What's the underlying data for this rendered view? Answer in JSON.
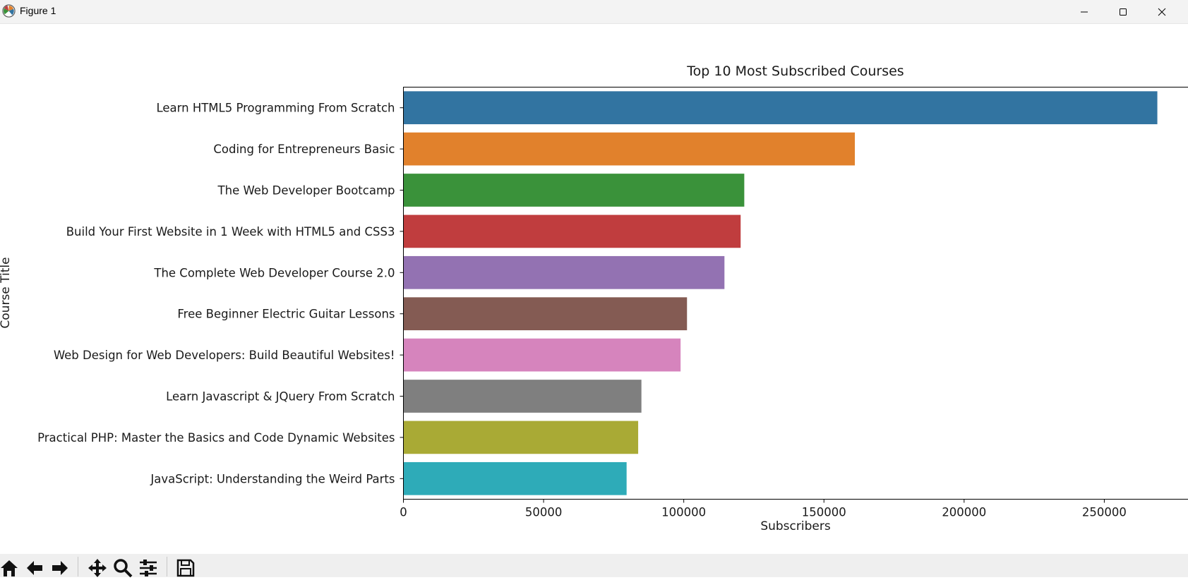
{
  "window": {
    "title": "Figure 1",
    "controls": [
      "minimize",
      "maximize",
      "close"
    ]
  },
  "toolbar": {
    "buttons": [
      "home-icon",
      "back-arrow-icon",
      "forward-arrow-icon",
      "pan-icon",
      "zoom-icon",
      "configure-subplots-icon",
      "save-icon"
    ]
  },
  "chart_data": {
    "type": "bar",
    "orientation": "horizontal",
    "title": "Top 10 Most Subscribed Courses",
    "xlabel": "Subscribers",
    "ylabel": "Course Title",
    "xlim": [
      0,
      282000
    ],
    "xticks": [
      0,
      50000,
      100000,
      150000,
      200000,
      250000
    ],
    "xtick_labels": [
      "0",
      "50000",
      "100000",
      "150000",
      "200000",
      "250000"
    ],
    "grid": false,
    "categories": [
      "Learn HTML5 Programming From Scratch",
      "Coding for Entrepreneurs Basic",
      "The Web Developer Bootcamp",
      "Build Your First Website in 1 Week with HTML5 and CSS3",
      "The Complete Web Developer Course 2.0",
      "Free Beginner Electric Guitar Lessons",
      "Web Design for Web Developers: Build Beautiful Websites!",
      "Learn Javascript & JQuery From Scratch",
      "Practical PHP: Master the Basics and Code Dynamic Websites",
      "JavaScript: Understanding the Weird Parts"
    ],
    "values": [
      268923,
      161029,
      121584,
      120291,
      114512,
      101154,
      98867,
      84897,
      83737,
      79612
    ],
    "colors": [
      "#3274a1",
      "#e1812c",
      "#3a923a",
      "#c03d3e",
      "#9372b2",
      "#845b53",
      "#d684bd",
      "#7f7f7f",
      "#a9aa35",
      "#2eabb8"
    ]
  }
}
